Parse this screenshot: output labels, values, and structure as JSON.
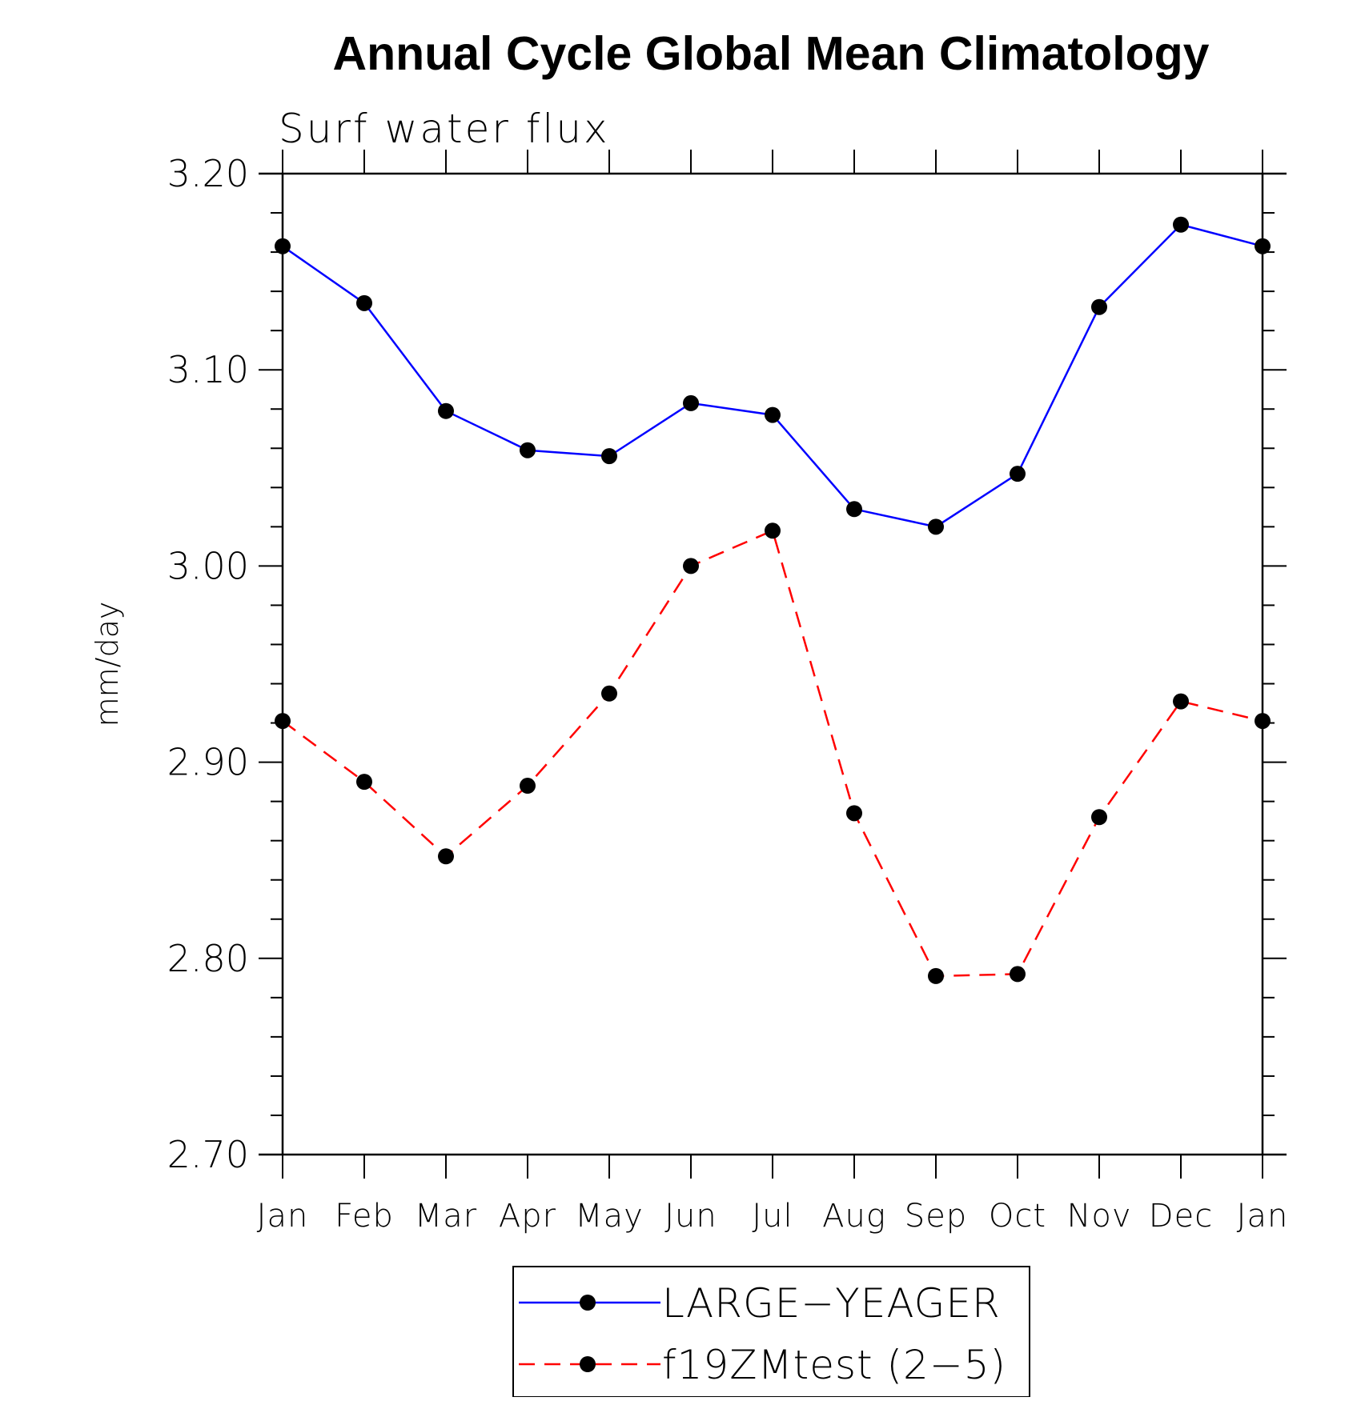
{
  "chart_data": {
    "type": "line",
    "title": "Annual Cycle Global Mean Climatology",
    "subtitle": "Surf water flux",
    "ylabel": "mm/day",
    "xlabel": "",
    "ylim": [
      2.7,
      3.2
    ],
    "yticks": [
      "3.20",
      "3.10",
      "3.00",
      "2.90",
      "2.80",
      "2.70"
    ],
    "categories": [
      "Jan",
      "Feb",
      "Mar",
      "Apr",
      "May",
      "Jun",
      "Jul",
      "Aug",
      "Sep",
      "Oct",
      "Nov",
      "Dec",
      "Jan"
    ],
    "grid": false,
    "legend_position": "bottom-center",
    "series": [
      {
        "name": "LARGE−YEAGER",
        "color": "#0000ff",
        "line_style": "solid",
        "marker": "filled-circle",
        "values": [
          3.163,
          3.134,
          3.079,
          3.059,
          3.056,
          3.083,
          3.077,
          3.029,
          3.02,
          3.047,
          3.132,
          3.174,
          3.163
        ]
      },
      {
        "name": "f19ZMtest (2−5)",
        "color": "#ff0000",
        "line_style": "dashed",
        "marker": "filled-circle",
        "values": [
          2.921,
          2.89,
          2.852,
          2.888,
          2.935,
          3.0,
          3.018,
          2.874,
          2.791,
          2.792,
          2.872,
          2.931,
          2.921
        ]
      }
    ]
  }
}
